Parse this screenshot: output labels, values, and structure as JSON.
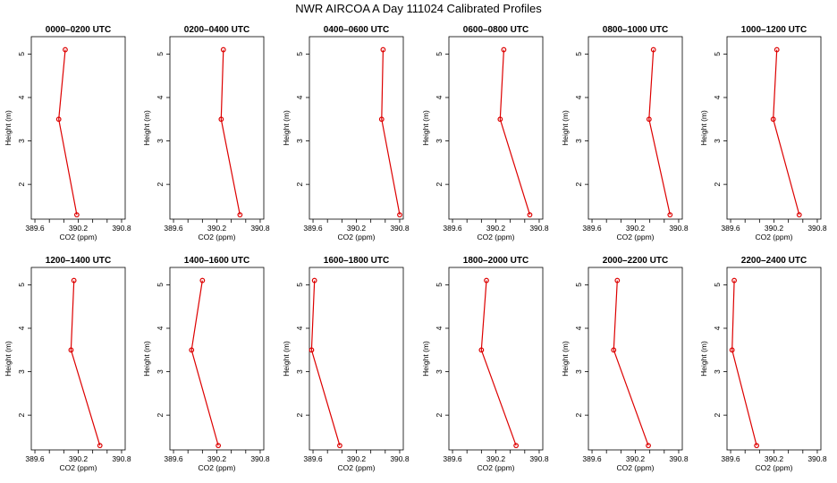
{
  "title": "NWR AIRCOA A  Day 111024  Calibrated Profiles",
  "colors": {
    "series": "#dd0000",
    "axis": "#000000"
  },
  "chart_data": {
    "type": "line",
    "xlabel": "CO2 (ppm)",
    "ylabel": "Height (m)",
    "xlim": [
      389.55,
      390.85
    ],
    "ylim": [
      1.2,
      5.4
    ],
    "x_ticks": [
      389.6,
      389.8,
      390.0,
      390.2,
      390.4,
      390.6,
      390.8
    ],
    "x_tick_labels": [
      "389.6",
      "",
      "",
      "390.2",
      "",
      "",
      "390.8"
    ],
    "y_ticks": [
      2,
      3,
      4,
      5
    ],
    "y_tick_labels": [
      "2",
      "3",
      "4",
      "5"
    ],
    "heights": [
      5.1,
      3.5,
      1.3
    ],
    "panels": [
      {
        "label": "0000–0200 UTC",
        "co2": [
          390.02,
          389.93,
          390.18
        ]
      },
      {
        "label": "0200–0400 UTC",
        "co2": [
          390.29,
          390.26,
          390.52
        ]
      },
      {
        "label": "0400–0600 UTC",
        "co2": [
          390.57,
          390.55,
          390.8
        ]
      },
      {
        "label": "0600–0800 UTC",
        "co2": [
          390.31,
          390.26,
          390.67
        ]
      },
      {
        "label": "0800–1000 UTC",
        "co2": [
          390.45,
          390.39,
          390.68
        ]
      },
      {
        "label": "1000–1200 UTC",
        "co2": [
          390.24,
          390.19,
          390.55
        ]
      },
      {
        "label": "1200–1400 UTC",
        "co2": [
          390.14,
          390.1,
          390.5
        ]
      },
      {
        "label": "1400–1600 UTC",
        "co2": [
          390.0,
          389.85,
          390.22
        ]
      },
      {
        "label": "1600–1800 UTC",
        "co2": [
          389.62,
          389.58,
          389.97
        ]
      },
      {
        "label": "1800–2000 UTC",
        "co2": [
          390.07,
          390.0,
          390.48
        ]
      },
      {
        "label": "2000–2200 UTC",
        "co2": [
          389.95,
          389.9,
          390.38
        ]
      },
      {
        "label": "2200–2400 UTC",
        "co2": [
          389.65,
          389.62,
          389.96
        ]
      }
    ]
  }
}
